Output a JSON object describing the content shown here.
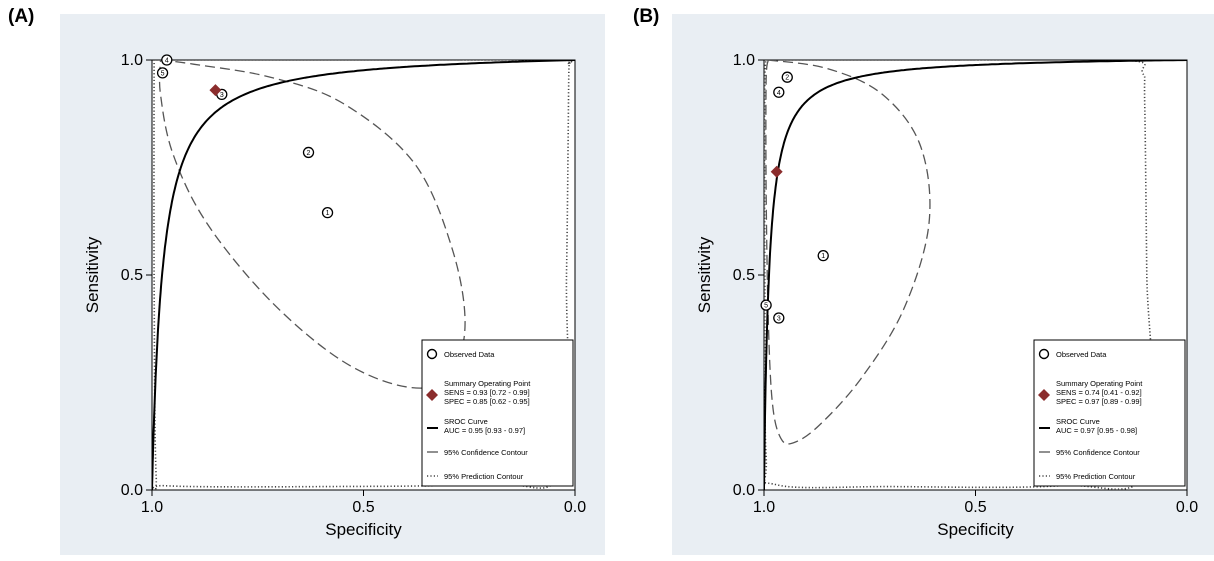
{
  "panels": [
    {
      "label": "(A)"
    },
    {
      "label": "(B)"
    }
  ],
  "chart_data": [
    {
      "type": "scatter",
      "panel": "(A)",
      "xlabel": "Specificity",
      "ylabel": "Sensitivity",
      "x_reversed": true,
      "xlim": [
        1.0,
        0.0
      ],
      "ylim": [
        0.0,
        1.0
      ],
      "xticks": [
        "1.0",
        "0.5",
        "0.0"
      ],
      "yticks": [
        "0.0",
        "0.5",
        "1.0"
      ],
      "grid": false,
      "legend_position": "bottom-right",
      "legend": {
        "observed": "Observed Data",
        "summary_title": "Summary Operating Point",
        "summary_sens": "SENS = 0.93 [0.72 - 0.99]",
        "summary_spec": "SPEC = 0.85 [0.62 - 0.95]",
        "sroc_title": "SROC Curve",
        "sroc_auc": "AUC = 0.95 [0.93 - 0.97]",
        "confidence": "95% Confidence Contour",
        "prediction": "95% Prediction Contour"
      },
      "observed_points": [
        {
          "id": "1",
          "spec": 0.585,
          "sens": 0.645
        },
        {
          "id": "2",
          "spec": 0.63,
          "sens": 0.785
        },
        {
          "id": "3",
          "spec": 0.835,
          "sens": 0.92
        },
        {
          "id": "4",
          "spec": 0.965,
          "sens": 1.0
        },
        {
          "id": "5",
          "spec": 0.975,
          "sens": 0.97
        }
      ],
      "summary_point": {
        "spec": 0.85,
        "sens": 0.93
      },
      "sroc_shape": 0.025,
      "confidence_contour": [
        [
          0.98,
          1.0
        ],
        [
          0.9,
          0.99
        ],
        [
          0.72,
          0.96
        ],
        [
          0.55,
          0.9
        ],
        [
          0.38,
          0.76
        ],
        [
          0.29,
          0.56
        ],
        [
          0.26,
          0.38
        ],
        [
          0.3,
          0.26
        ],
        [
          0.4,
          0.24
        ],
        [
          0.55,
          0.3
        ],
        [
          0.72,
          0.44
        ],
        [
          0.87,
          0.62
        ],
        [
          0.95,
          0.78
        ],
        [
          0.98,
          0.92
        ],
        [
          0.98,
          1.0
        ]
      ],
      "prediction_contour": [
        [
          0.995,
          1.0
        ],
        [
          0.98,
          1.0
        ],
        [
          0.5,
          1.0
        ],
        [
          0.05,
          1.0
        ],
        [
          0.015,
          0.99
        ],
        [
          0.015,
          0.95
        ],
        [
          0.02,
          0.5
        ],
        [
          0.03,
          0.05
        ],
        [
          0.2,
          0.015
        ],
        [
          0.6,
          0.008
        ],
        [
          0.97,
          0.01
        ],
        [
          0.99,
          0.03
        ],
        [
          0.995,
          0.5
        ],
        [
          0.995,
          1.0
        ]
      ]
    },
    {
      "type": "scatter",
      "panel": "(B)",
      "xlabel": "Specificity",
      "ylabel": "Sensitivity",
      "x_reversed": true,
      "xlim": [
        1.0,
        0.0
      ],
      "ylim": [
        0.0,
        1.0
      ],
      "xticks": [
        "1.0",
        "0.5",
        "0.0"
      ],
      "yticks": [
        "0.0",
        "0.5",
        "1.0"
      ],
      "grid": false,
      "legend_position": "bottom-right",
      "legend": {
        "observed": "Observed Data",
        "summary_title": "Summary Operating Point",
        "summary_sens": "SENS = 0.74 [0.41 - 0.92]",
        "summary_spec": "SPEC = 0.97 [0.89 - 0.99]",
        "sroc_title": "SROC Curve",
        "sroc_auc": "AUC = 0.97 [0.95 - 0.98]",
        "confidence": "95% Confidence Contour",
        "prediction": "95% Prediction Contour"
      },
      "observed_points": [
        {
          "id": "1",
          "spec": 0.86,
          "sens": 0.545
        },
        {
          "id": "2",
          "spec": 0.945,
          "sens": 0.96
        },
        {
          "id": "3",
          "spec": 0.965,
          "sens": 0.4
        },
        {
          "id": "4",
          "spec": 0.965,
          "sens": 0.925
        },
        {
          "id": "5",
          "spec": 0.995,
          "sens": 0.43
        }
      ],
      "summary_point": {
        "spec": 0.97,
        "sens": 0.74
      },
      "sroc_shape": 0.012,
      "confidence_contour": [
        [
          0.99,
          1.0
        ],
        [
          0.85,
          0.98
        ],
        [
          0.72,
          0.92
        ],
        [
          0.63,
          0.8
        ],
        [
          0.61,
          0.62
        ],
        [
          0.67,
          0.42
        ],
        [
          0.77,
          0.26
        ],
        [
          0.87,
          0.15
        ],
        [
          0.93,
          0.11
        ],
        [
          0.96,
          0.12
        ],
        [
          0.98,
          0.2
        ],
        [
          0.99,
          0.4
        ],
        [
          0.995,
          0.7
        ],
        [
          0.995,
          0.95
        ],
        [
          0.99,
          1.0
        ]
      ],
      "prediction_contour": [
        [
          0.99,
          1.0
        ],
        [
          0.6,
          1.0
        ],
        [
          0.15,
          1.0
        ],
        [
          0.105,
          0.97
        ],
        [
          0.1,
          0.9
        ],
        [
          0.095,
          0.5
        ],
        [
          0.09,
          0.05
        ],
        [
          0.3,
          0.01
        ],
        [
          0.7,
          0.008
        ],
        [
          0.97,
          0.012
        ],
        [
          0.995,
          0.08
        ],
        [
          0.998,
          0.5
        ],
        [
          0.998,
          0.95
        ],
        [
          0.99,
          1.0
        ]
      ]
    }
  ]
}
